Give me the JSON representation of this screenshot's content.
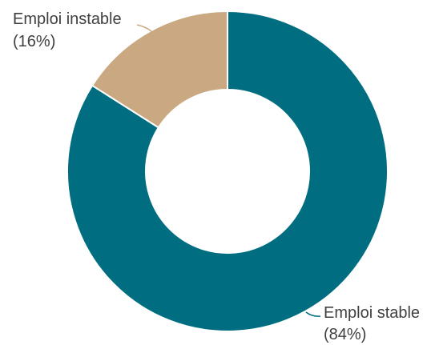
{
  "chart_data": {
    "type": "pie",
    "variant": "donut",
    "slices": [
      {
        "name": "Emploi stable",
        "value": 84,
        "label_name": "Emploi stable",
        "label_value": "(84%)",
        "color": "#006d80"
      },
      {
        "name": "Emploi instable",
        "value": 16,
        "label_name": "Emploi instable",
        "label_value": "(16%)",
        "color": "#c9a882"
      }
    ],
    "legend": "none",
    "label_placement": "outside with leader lines"
  }
}
